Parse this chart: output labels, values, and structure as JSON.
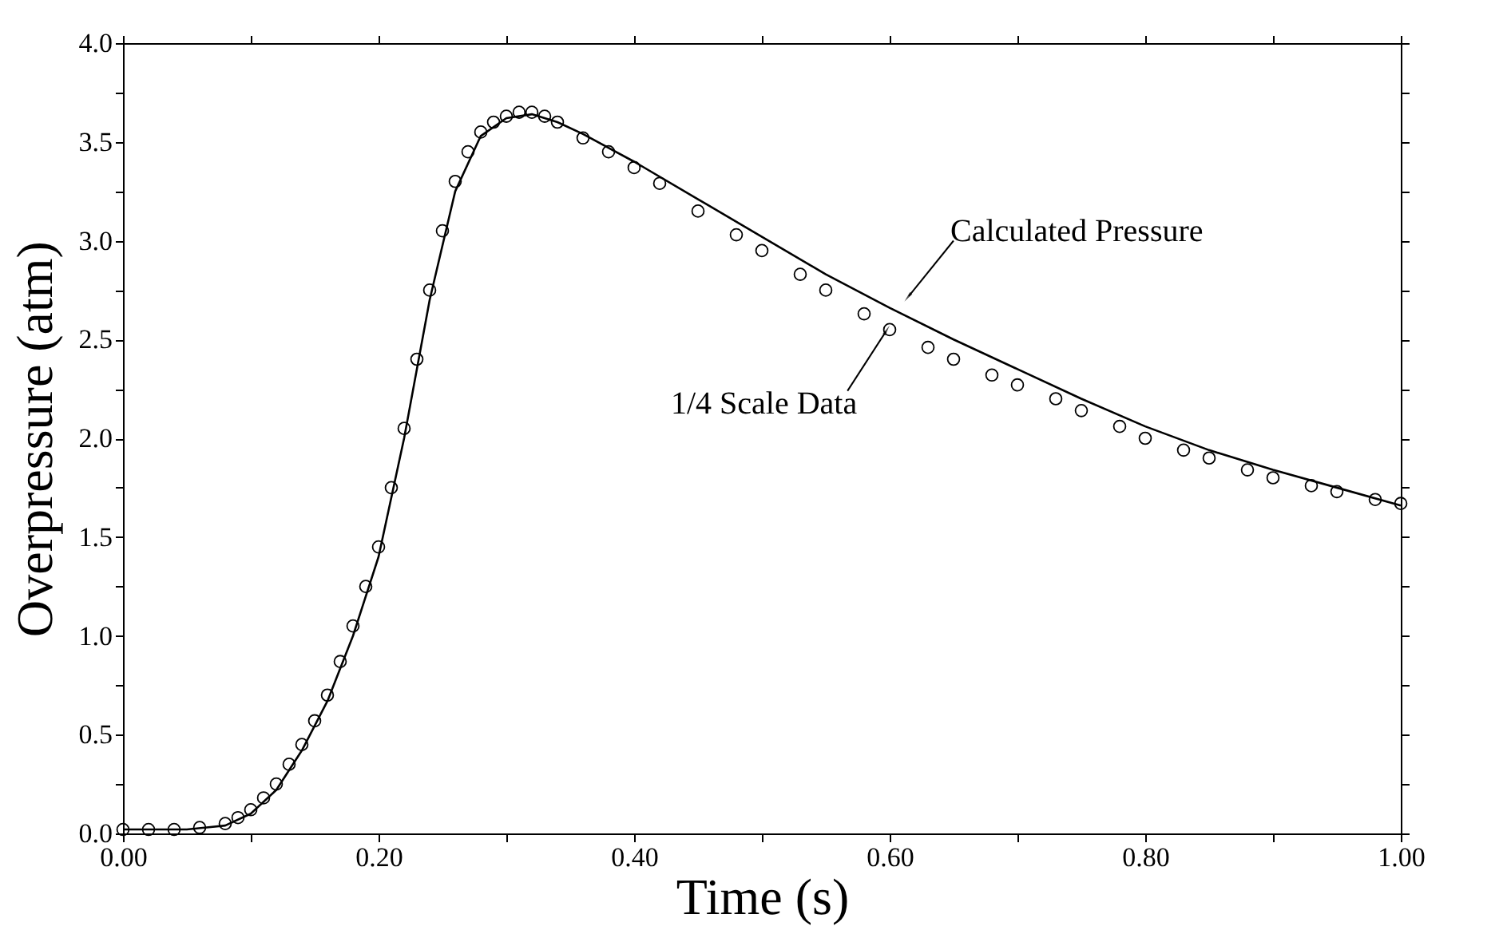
{
  "chart_data": {
    "type": "scatter",
    "xlabel": "Time (s)",
    "ylabel": "Overpressure (atm)",
    "xlim": [
      0,
      1
    ],
    "ylim": [
      0,
      4
    ],
    "xticks": [
      {
        "value": 0,
        "label": "0.00"
      },
      {
        "value": 0.1,
        "label": null
      },
      {
        "value": 0.2,
        "label": "0.20"
      },
      {
        "value": 0.3,
        "label": null
      },
      {
        "value": 0.4,
        "label": "0.40"
      },
      {
        "value": 0.5,
        "label": null
      },
      {
        "value": 0.6,
        "label": "0.60"
      },
      {
        "value": 0.7,
        "label": null
      },
      {
        "value": 0.8,
        "label": "0.80"
      },
      {
        "value": 0.9,
        "label": null
      },
      {
        "value": 1,
        "label": "1.00"
      }
    ],
    "yticks": [
      {
        "value": 0,
        "label": "0.0"
      },
      {
        "value": 0.25,
        "label": null
      },
      {
        "value": 0.5,
        "label": "0.5"
      },
      {
        "value": 0.75,
        "label": null
      },
      {
        "value": 1,
        "label": "1.0"
      },
      {
        "value": 1.25,
        "label": null
      },
      {
        "value": 1.5,
        "label": "1.5"
      },
      {
        "value": 1.75,
        "label": null
      },
      {
        "value": 2,
        "label": "2.0"
      },
      {
        "value": 2.25,
        "label": null
      },
      {
        "value": 2.5,
        "label": "2.5"
      },
      {
        "value": 2.75,
        "label": null
      },
      {
        "value": 3,
        "label": "3.0"
      },
      {
        "value": 3.25,
        "label": null
      },
      {
        "value": 3.5,
        "label": "3.5"
      },
      {
        "value": 3.75,
        "label": null
      },
      {
        "value": 4,
        "label": "4.0"
      }
    ],
    "grid": false,
    "series": [
      {
        "marker": "circle",
        "color": "#000000",
        "x": [
          0,
          0.02,
          0.04,
          0.06,
          0.08,
          0.09,
          0.1,
          0.11,
          0.12,
          0.13,
          0.14,
          0.15,
          0.16,
          0.17,
          0.18,
          0.19,
          0.2,
          0.21,
          0.22,
          0.23,
          0.24,
          0.25,
          0.26,
          0.27,
          0.28,
          0.29,
          0.3,
          0.31,
          0.32,
          0.33,
          0.34,
          0.36,
          0.38,
          0.4,
          0.42,
          0.45,
          0.48,
          0.5,
          0.53,
          0.55,
          0.58,
          0.6,
          0.63,
          0.65,
          0.68,
          0.7,
          0.73,
          0.75,
          0.78,
          0.8,
          0.83,
          0.85,
          0.88,
          0.9,
          0.93,
          0.95,
          0.98,
          1.0
        ],
        "values": [
          0.02,
          0.02,
          0.02,
          0.03,
          0.05,
          0.08,
          0.12,
          0.18,
          0.25,
          0.35,
          0.45,
          0.57,
          0.7,
          0.87,
          1.05,
          1.25,
          1.45,
          1.75,
          2.05,
          2.4,
          2.75,
          3.05,
          3.3,
          3.45,
          3.55,
          3.6,
          3.63,
          3.65,
          3.65,
          3.63,
          3.6,
          3.52,
          3.45,
          3.37,
          3.29,
          3.15,
          3.03,
          2.95,
          2.83,
          2.75,
          2.63,
          2.55,
          2.46,
          2.4,
          2.32,
          2.27,
          2.2,
          2.14,
          2.06,
          2.0,
          1.94,
          1.9,
          1.84,
          1.8,
          1.76,
          1.73,
          1.69,
          1.67
        ]
      },
      {
        "type": "line",
        "line_style": "solid",
        "color": "#000000",
        "x": [
          0,
          0.05,
          0.08,
          0.1,
          0.12,
          0.14,
          0.16,
          0.18,
          0.2,
          0.22,
          0.24,
          0.26,
          0.28,
          0.3,
          0.32,
          0.34,
          0.36,
          0.4,
          0.45,
          0.5,
          0.55,
          0.6,
          0.65,
          0.7,
          0.75,
          0.8,
          0.85,
          0.9,
          0.95,
          1.0
        ],
        "values": [
          0.02,
          0.02,
          0.04,
          0.1,
          0.22,
          0.42,
          0.67,
          1.0,
          1.4,
          2.0,
          2.7,
          3.25,
          3.53,
          3.62,
          3.64,
          3.6,
          3.54,
          3.4,
          3.21,
          3.02,
          2.83,
          2.66,
          2.5,
          2.35,
          2.2,
          2.06,
          1.94,
          1.84,
          1.75,
          1.66
        ]
      }
    ],
    "annotations": [
      {
        "text": "Calculated Pressure",
        "x": 0.615,
        "y": 2.72
      },
      {
        "text": "1/4 Scale Data",
        "x": 0.597,
        "y": 2.54
      }
    ]
  }
}
